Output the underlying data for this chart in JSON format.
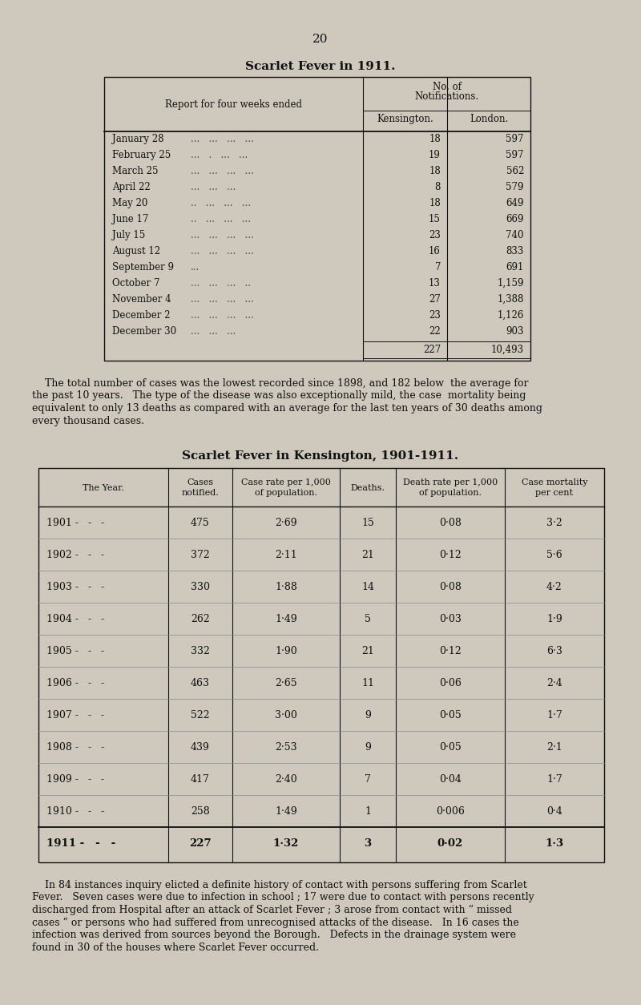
{
  "page_number": "20",
  "bg_color": "#cec9bc",
  "title1_part1": "Scarlet Fever in",
  "title1_part2": "1911.",
  "table1_header_col1": "Report for four weeks ended",
  "table1_header_kensington": "Kensington.",
  "table1_header_london": "London.",
  "table1_rows": [
    [
      "January 28",
      "...   ...   ...   ...",
      "18",
      "597"
    ],
    [
      "February 25",
      "...   .   ...   ...",
      "19",
      "597"
    ],
    [
      "March 25",
      "...   ...   ...   ...",
      "18",
      "562"
    ],
    [
      "April 22",
      "...   ...   ...",
      "8",
      "579"
    ],
    [
      "May 20",
      "..   ...   ...   ...",
      "18",
      "649"
    ],
    [
      "June 17",
      "..   ...   ...   ...",
      "15",
      "669"
    ],
    [
      "July 15",
      "...   ...   ...   ...",
      "23",
      "740"
    ],
    [
      "August 12",
      "...   ...   ...   ...",
      "16",
      "833"
    ],
    [
      "September 9",
      "...",
      "7",
      "691"
    ],
    [
      "October 7",
      "...   ...   ...   ..",
      "13",
      "1,159"
    ],
    [
      "November 4",
      "...   ...   ...   ...",
      "27",
      "1,388"
    ],
    [
      "December 2",
      "...   ...   ...   ...",
      "23",
      "1,126"
    ],
    [
      "December 30",
      "...   ...   ...",
      "22",
      "903"
    ]
  ],
  "table1_total_kensington": "227",
  "table1_total_london": "10,493",
  "para1_indent": "    The total number of cases was the lowest recorded since 1898, and 182 below  the average for",
  "para1_lines": [
    "    The total number of cases was the lowest recorded since 1898, and 182 below  the average for",
    "the past 10 years.   The type of the disease was also exceptionally mild, the case  mortality being",
    "equivalent to only 13 deaths as compared with an average for the last ten years of 30 deaths among",
    "every thousand cases."
  ],
  "title2": "Scarlet Fever in Kensington,",
  "title2_year": "1901-1911.",
  "table2_headers": [
    "The Year.",
    "Cases\nnotified.",
    "Case rate per 1,000\nof population.",
    "Deaths.",
    "Death rate per 1,000\nof population.",
    "Case mortality\nper cent"
  ],
  "table2_rows": [
    [
      "1901",
      " -   -   -",
      "475",
      "2·69",
      "15",
      "0·08",
      "3·2"
    ],
    [
      "1902",
      " -   -   -",
      "372",
      "2·11",
      "21",
      "0·12",
      "5·6"
    ],
    [
      "1903",
      " -   -   -",
      "330",
      "1·88",
      "14",
      "0·08",
      "4·2"
    ],
    [
      "1904",
      " -   -   -",
      "262",
      "1·49",
      "5",
      "0·03",
      "1·9"
    ],
    [
      "1905",
      " -   -   -",
      "332",
      "1·90",
      "21",
      "0·12",
      "6·3"
    ],
    [
      "1906",
      " -   -   -",
      "463",
      "2·65",
      "11",
      "0·06",
      "2·4"
    ],
    [
      "1907",
      " -   -   -",
      "522",
      "3·00",
      "9",
      "0·05",
      "1·7"
    ],
    [
      "1908",
      " -   -   -",
      "439",
      "2·53",
      "9",
      "0·05",
      "2·1"
    ],
    [
      "1909",
      " -   -   -",
      "417",
      "2·40",
      "7",
      "0·04",
      "1·7"
    ],
    [
      "1910",
      " -   -   -",
      "258",
      "1·49",
      "1",
      "0·006",
      "0·4"
    ],
    [
      "1911",
      " -   -   -",
      "227",
      "1·32",
      "3",
      "0·02",
      "1·3"
    ]
  ],
  "para2_lines": [
    "    In 84 instances inquiry elicted a definite history of contact with persons suffering from Scarlet",
    "Fever.   Seven cases were due to infection in school ; 17 were due to contact with persons recently",
    "discharged from Hospital after an attack of Scarlet Fever ; 3 arose from contact with “ missed",
    "cases ” or persons who had suffered from unrecognised attacks of the disease.   In 16 cases the",
    "infection was derived from sources beyond the Borough.   Defects in the drainage system were",
    "found in 30 of the houses where Scarlet Fever occurred."
  ]
}
